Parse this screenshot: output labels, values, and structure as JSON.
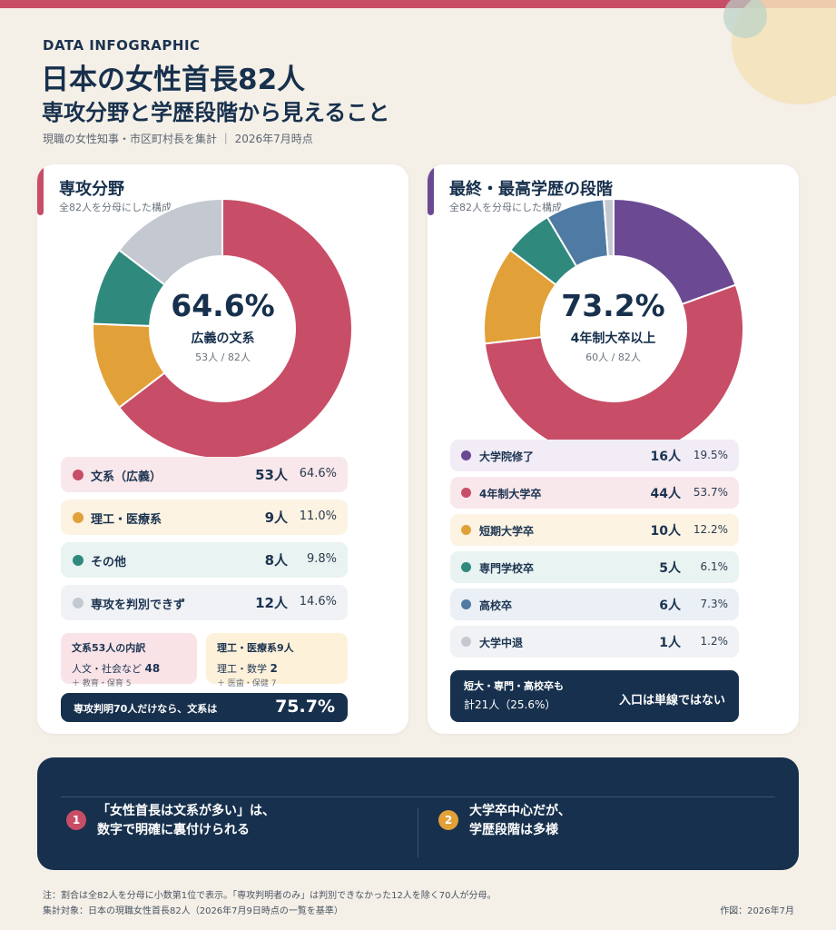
{
  "header": {
    "eyebrow": "DATA INFOGRAPHIC",
    "title": "日本の女性首長82人",
    "subtitle": "専攻分野と学歴段階から見えること",
    "meta": "現職の女性知事・市区町村長を集計 ｜ 2026年7月時点"
  },
  "major_card": {
    "title": "専攻分野",
    "note": "全82人を分母にした構成",
    "center_pct": "64.6%",
    "center_label": "広義の文系",
    "center_sub": "53人 / 82人",
    "rows": [
      {
        "name": "文系（広義）",
        "count": "53人",
        "pct": "64.6%",
        "color": "#c84d66",
        "bg": "#f9e8eb"
      },
      {
        "name": "理工・医療系",
        "count": "9人",
        "pct": "11.0%",
        "color": "#e2a038",
        "bg": "#fcf3e2"
      },
      {
        "name": "その他",
        "count": "8人",
        "pct": "9.8%",
        "color": "#2f8a7d",
        "bg": "#e9f3f1"
      },
      {
        "name": "専攻を判別できず",
        "count": "12人",
        "pct": "14.6%",
        "color": "#c4c9d1",
        "bg": "#f0f2f5"
      }
    ],
    "breakdown_bun": {
      "title": "文系53人の内訳",
      "main_text": "人文・社会など",
      "main_num": "48",
      "sub": "＋ 教育・保育 5"
    },
    "breakdown_ri": {
      "title": "理工・医療系9人",
      "main_text": "理工・数学",
      "main_num": "2",
      "sub": "＋ 医歯・保健 7"
    },
    "bar_label": "専攻判明70人だけなら、文系は",
    "bar_value": "75.7%"
  },
  "edu_card": {
    "title": "最終・最高学歴の段階",
    "note": "全82人を分母にした構成",
    "center_pct": "73.2%",
    "center_label": "4年制大卒以上",
    "center_sub": "60人 / 82人",
    "rows": [
      {
        "name": "大学院修了",
        "count": "16人",
        "pct": "19.5%",
        "color": "#6b4a93",
        "bg": "#f1ecf6"
      },
      {
        "name": "4年制大学卒",
        "count": "44人",
        "pct": "53.7%",
        "color": "#c84d66",
        "bg": "#f9e8eb"
      },
      {
        "name": "短期大学卒",
        "count": "10人",
        "pct": "12.2%",
        "color": "#e2a038",
        "bg": "#fcf3e2"
      },
      {
        "name": "専門学校卒",
        "count": "5人",
        "pct": "6.1%",
        "color": "#2f8a7d",
        "bg": "#e9f3f1"
      },
      {
        "name": "高校卒",
        "count": "6人",
        "pct": "7.3%",
        "color": "#4f7aa3",
        "bg": "#ebf0f6"
      },
      {
        "name": "大学中退",
        "count": "1人",
        "pct": "1.2%",
        "color": "#c4c9d1",
        "bg": "#f0f2f5"
      }
    ],
    "bar_line1": "短大・専門・高校卒も",
    "bar_line2": "計21人（25.6%）",
    "bar_right": "入口は単線ではない"
  },
  "chart_data": [
    {
      "type": "pie",
      "title": "専攻分野",
      "categories": [
        "文系（広義）",
        "理工・医療系",
        "その他",
        "専攻を判別できず"
      ],
      "values": [
        53,
        9,
        8,
        12
      ],
      "colors": [
        "#c84d66",
        "#e2a038",
        "#2f8a7d",
        "#c4c9d1"
      ]
    },
    {
      "type": "pie",
      "title": "最終・最高学歴の段階",
      "categories": [
        "大学院修了",
        "4年制大学卒",
        "短期大学卒",
        "専門学校卒",
        "高校卒",
        "大学中退"
      ],
      "values": [
        16,
        44,
        10,
        5,
        6,
        1
      ],
      "colors": [
        "#6b4a93",
        "#c84d66",
        "#e2a038",
        "#2f8a7d",
        "#4f7aa3",
        "#c4c9d1"
      ]
    }
  ],
  "takeaways": [
    {
      "num": "1",
      "line1": "「女性首長は文系が多い」は、",
      "line2": "数字で明確に裏付けられる",
      "color": "#c84d66"
    },
    {
      "num": "2",
      "line1": "大学卒中心だが、",
      "line2": "学歴段階は多様",
      "color": "#e2a038"
    }
  ],
  "footer": {
    "note": "注：割合は全82人を分母に小数第1位で表示。「専攻判明者のみ」は判別できなかった12人を除く70人が分母。",
    "scope": "集計対象：日本の現職女性首長82人（2026年7月9日時点の一覧を基準）",
    "credit": "作図：2026年7月"
  }
}
